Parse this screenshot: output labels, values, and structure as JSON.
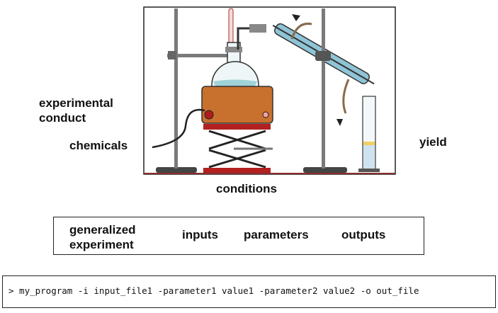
{
  "labels": {
    "experimental_conduct_line1": "experimental",
    "experimental_conduct_line2": "conduct",
    "chemicals": "chemicals",
    "yield": "yield",
    "conditions": "conditions"
  },
  "summary_box": {
    "generalized_line1": "generalized",
    "generalized_line2": "experiment",
    "inputs": "inputs",
    "parameters": "parameters",
    "outputs": "outputs"
  },
  "command_line": "> my_program -i input_file1 -parameter1 value1 -parameter2 value2 -o out_file",
  "colors": {
    "heater_body": "#c8702e",
    "flask_liquid": "#9fd3d8",
    "condenser": "#8fc4d6",
    "lab_jack": "#b32020",
    "cylinder_liquid": "#f0d060"
  }
}
